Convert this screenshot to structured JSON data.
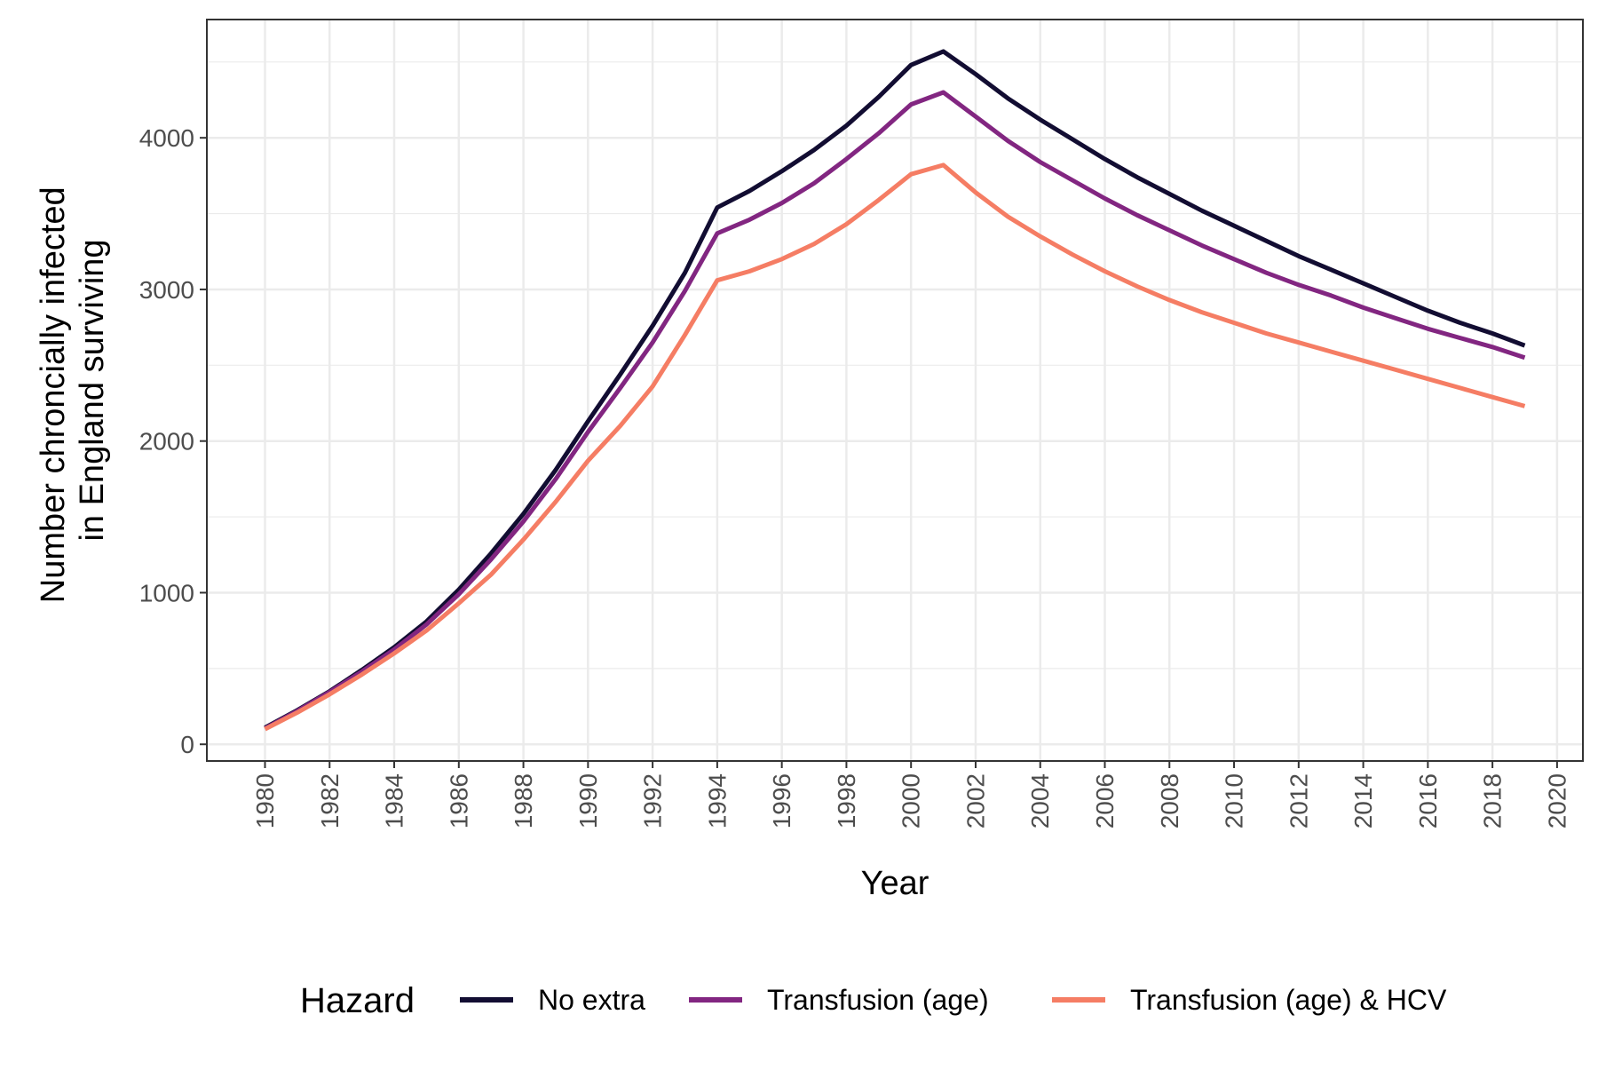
{
  "chart_data": {
    "type": "line",
    "title": "",
    "xlabel": "Year",
    "ylabel": [
      "Number chroncially infected",
      "in England surviving"
    ],
    "xlim": [
      1978.2,
      2020.8
    ],
    "ylim": [
      -110,
      4780
    ],
    "x_ticks": [
      1980,
      1982,
      1984,
      1986,
      1988,
      1990,
      1992,
      1994,
      1996,
      1998,
      2000,
      2002,
      2004,
      2006,
      2008,
      2010,
      2012,
      2014,
      2016,
      2018,
      2020
    ],
    "y_ticks": [
      0,
      1000,
      2000,
      3000,
      4000
    ],
    "y_minor_ticks": [
      500,
      1500,
      2500,
      3500,
      4500
    ],
    "grid": true,
    "legend": {
      "title": "Hazard",
      "position": "bottom"
    },
    "x": [
      1980,
      1981,
      1982,
      1983,
      1984,
      1985,
      1986,
      1987,
      1988,
      1989,
      1990,
      1991,
      1992,
      1993,
      1994,
      1995,
      1996,
      1997,
      1998,
      1999,
      2000,
      2001,
      2002,
      2003,
      2004,
      2005,
      2006,
      2007,
      2008,
      2009,
      2010,
      2011,
      2012,
      2013,
      2014,
      2015,
      2016,
      2017,
      2018,
      2019
    ],
    "series": [
      {
        "name": "No extra",
        "color": "#120d32",
        "values": [
          110,
          225,
          350,
          490,
          640,
          810,
          1020,
          1260,
          1520,
          1810,
          2130,
          2440,
          2760,
          3110,
          3540,
          3650,
          3780,
          3920,
          4080,
          4270,
          4480,
          4570,
          4420,
          4260,
          4120,
          3990,
          3860,
          3740,
          3630,
          3520,
          3420,
          3320,
          3220,
          3130,
          3040,
          2950,
          2860,
          2780,
          2710,
          2630
        ]
      },
      {
        "name": "Transfusion (age)",
        "color": "#822681",
        "values": [
          105,
          220,
          345,
          480,
          625,
          790,
          990,
          1220,
          1470,
          1750,
          2060,
          2350,
          2650,
          2990,
          3370,
          3460,
          3570,
          3700,
          3860,
          4030,
          4220,
          4300,
          4140,
          3980,
          3840,
          3720,
          3600,
          3490,
          3390,
          3290,
          3200,
          3110,
          3030,
          2960,
          2880,
          2810,
          2740,
          2680,
          2620,
          2550
        ]
      },
      {
        "name": "Transfusion (age) & HCV",
        "color": "#f57d64",
        "values": [
          100,
          210,
          330,
          460,
          600,
          750,
          930,
          1120,
          1350,
          1600,
          1870,
          2100,
          2360,
          2700,
          3060,
          3120,
          3200,
          3300,
          3430,
          3590,
          3760,
          3820,
          3640,
          3480,
          3350,
          3230,
          3120,
          3020,
          2930,
          2850,
          2780,
          2710,
          2650,
          2590,
          2530,
          2470,
          2410,
          2350,
          2290,
          2230
        ]
      }
    ]
  }
}
